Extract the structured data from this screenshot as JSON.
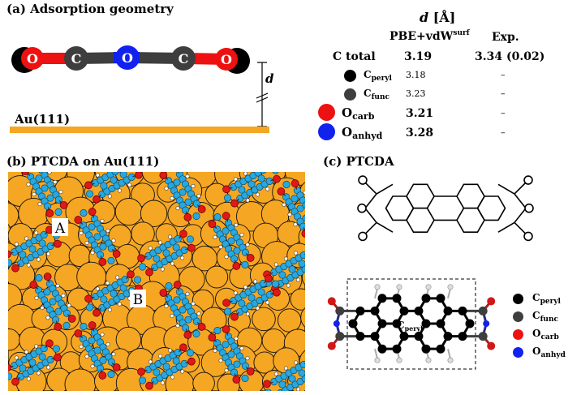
{
  "panels": {
    "a": {
      "title": "(a) Adsorption geometry"
    },
    "b": {
      "title": "(b) PTCDA on Au(111)"
    },
    "c": {
      "title": "(c) PTCDA"
    }
  },
  "geometry": {
    "atoms": [
      "O",
      "C",
      "O",
      "C",
      "O"
    ],
    "surface_label": "Au(111)",
    "d_label": "d",
    "colors": {
      "o_carb": "#ee1111",
      "c_func": "#3e3e3e",
      "o_anhyd": "#1122ee",
      "c_peryl": "#000000",
      "au": "#f5a623"
    }
  },
  "table": {
    "header_symbol": "d",
    "header_unit": "[Å]",
    "col1_main": "PBE+vdW",
    "col1_sup": "surf",
    "col2": "Exp.",
    "rows": [
      {
        "name": "C total",
        "sub": "",
        "pbe": "3.19",
        "exp": "3.34 (0.02)"
      },
      {
        "name": "C",
        "sub": "peryl",
        "pbe": "3.18",
        "exp": "–"
      },
      {
        "name": "C",
        "sub": "func",
        "pbe": "3.23",
        "exp": "–"
      },
      {
        "name": "O",
        "sub": "carb",
        "pbe": "3.21",
        "exp": "–"
      },
      {
        "name": "O",
        "sub": "anhyd",
        "pbe": "3.28",
        "exp": "–"
      }
    ]
  },
  "markers": {
    "a": "A",
    "b": "B"
  },
  "legend": [
    {
      "main": "C",
      "sub": "peryl",
      "color": "#000000"
    },
    {
      "main": "C",
      "sub": "func",
      "color": "#3e3e3e"
    },
    {
      "main": "O",
      "sub": "carb",
      "color": "#ee1111"
    },
    {
      "main": "O",
      "sub": "anhyd",
      "color": "#1122ee"
    }
  ],
  "model_label": {
    "main": "C",
    "sub": "peryl"
  }
}
